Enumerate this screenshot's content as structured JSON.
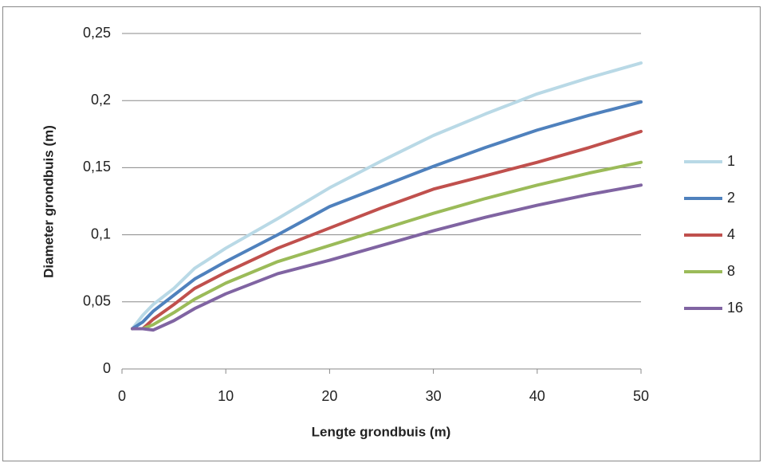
{
  "chart_data": {
    "type": "line",
    "x_label": "Lengte grondbuis (m)",
    "y_label": "Diameter grondbuis (m)",
    "x": [
      1,
      2,
      3,
      5,
      7,
      10,
      15,
      20,
      25,
      30,
      35,
      40,
      45,
      50
    ],
    "series": [
      {
        "name": "1",
        "color": "#b9d9e6",
        "values": [
          0.03,
          0.04,
          0.048,
          0.06,
          0.075,
          0.09,
          0.112,
          0.135,
          0.155,
          0.174,
          0.19,
          0.205,
          0.217,
          0.228
        ]
      },
      {
        "name": "2",
        "color": "#4f81bd",
        "values": [
          0.03,
          0.035,
          0.043,
          0.055,
          0.067,
          0.08,
          0.1,
          0.121,
          0.136,
          0.151,
          0.165,
          0.178,
          0.189,
          0.199
        ]
      },
      {
        "name": "4",
        "color": "#c0504d",
        "values": [
          0.03,
          0.03,
          0.037,
          0.048,
          0.06,
          0.072,
          0.09,
          0.105,
          0.12,
          0.134,
          0.144,
          0.154,
          0.165,
          0.177
        ]
      },
      {
        "name": "8",
        "color": "#9bbb59",
        "values": [
          0.03,
          0.03,
          0.033,
          0.042,
          0.052,
          0.064,
          0.08,
          0.092,
          0.104,
          0.116,
          0.127,
          0.137,
          0.146,
          0.154
        ]
      },
      {
        "name": "16",
        "color": "#8064a2",
        "values": [
          0.03,
          0.03,
          0.029,
          0.036,
          0.045,
          0.056,
          0.071,
          0.081,
          0.092,
          0.103,
          0.113,
          0.122,
          0.13,
          0.137
        ]
      }
    ],
    "xlim": [
      0,
      50
    ],
    "xticks": [
      0,
      10,
      20,
      30,
      40,
      50
    ],
    "ylim": [
      0,
      0.25
    ],
    "yticks": [
      0,
      {
        "value": 0.05,
        "label": "0,05"
      },
      {
        "value": 0.1,
        "label": "0,1"
      },
      {
        "value": 0.15,
        "label": "0,15"
      },
      {
        "value": 0.2,
        "label": "0,2"
      },
      {
        "value": 0.25,
        "label": "0,25"
      }
    ],
    "grid": true,
    "legend": "right"
  }
}
